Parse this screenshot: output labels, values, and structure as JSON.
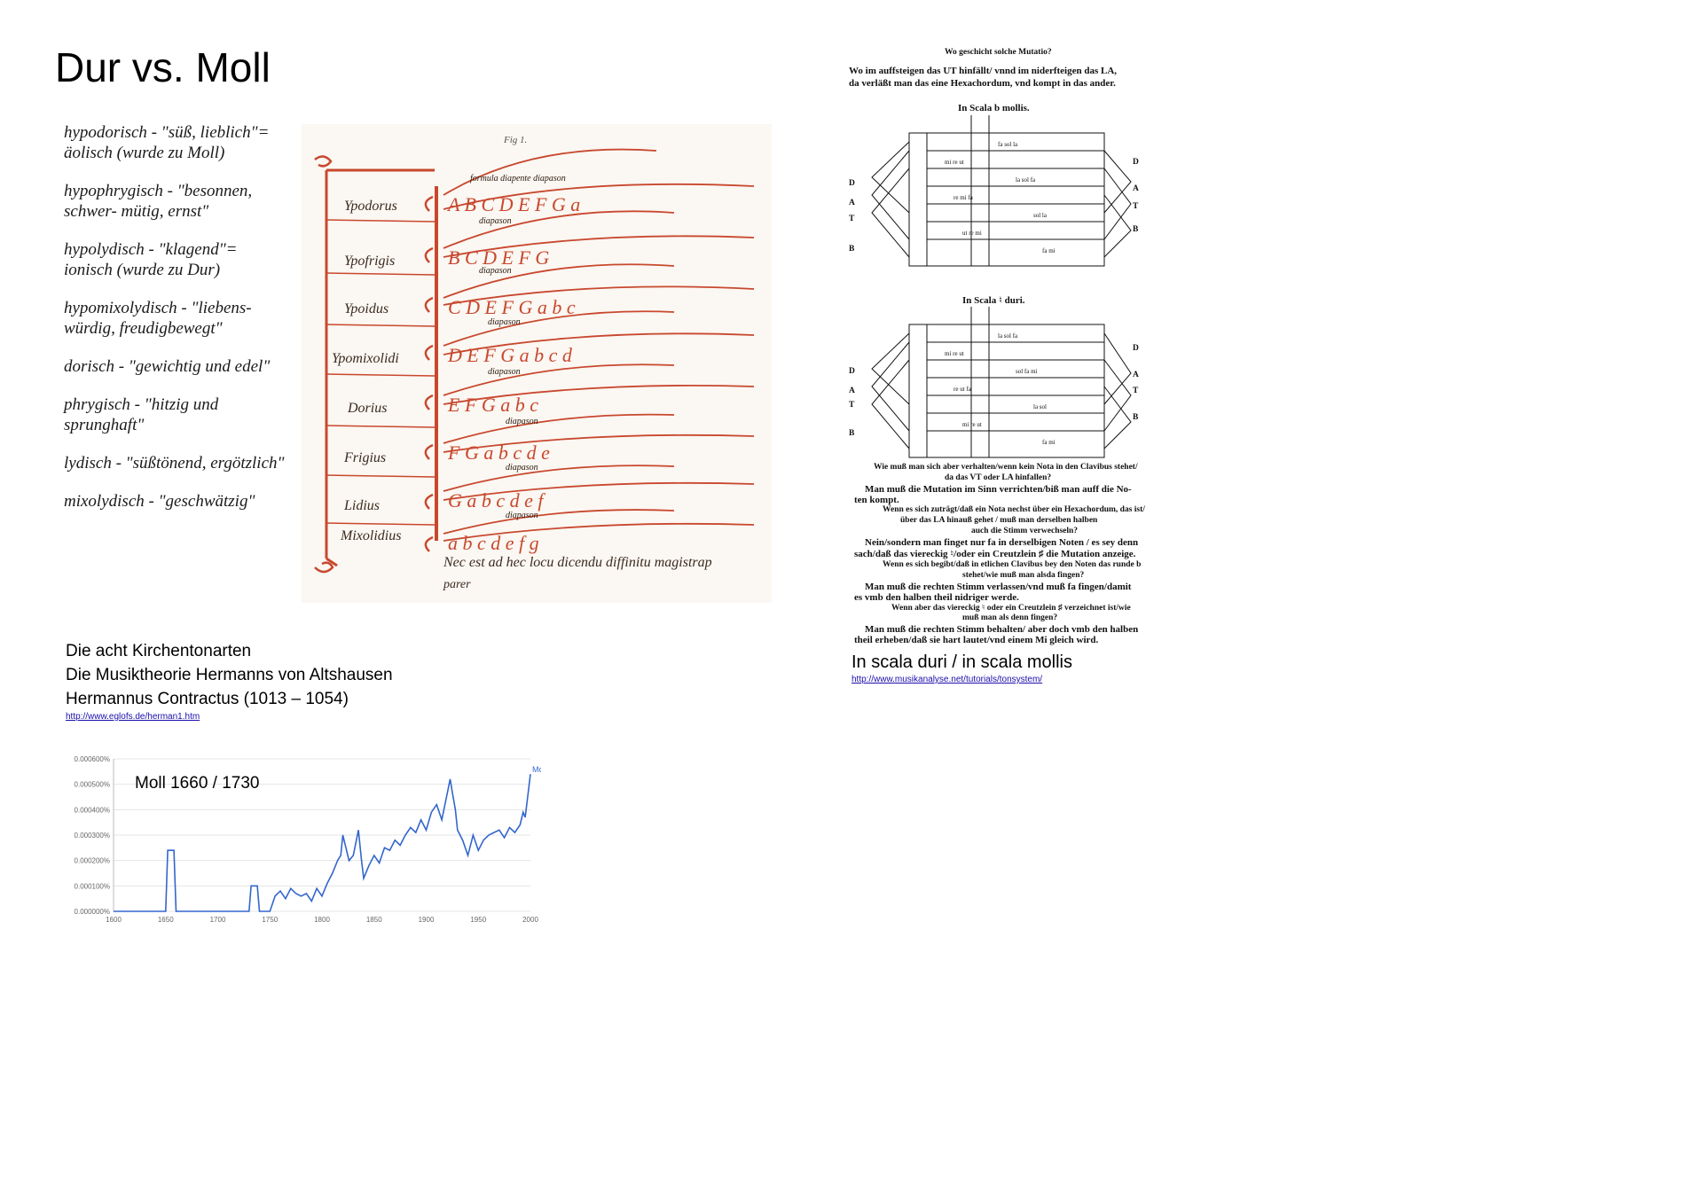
{
  "title": "Dur vs. Moll",
  "modes": [
    {
      "text": "hypodorisch - \"süß, lieblich\"= äolisch (wurde zu Moll)"
    },
    {
      "text": "hypophrygisch - \"besonnen, schwer- mütig, ernst\""
    },
    {
      "text": "hypolydisch - \"klagend\"= ionisch  (wurde zu Dur)"
    },
    {
      "text": "hypomixolydisch - \"liebens- würdig, freudigbewegt\""
    },
    {
      "text": "dorisch - \"gewichtig  und edel\""
    },
    {
      "text": "phrygisch - \"hitzig  und sprunghaft\""
    },
    {
      "text": "lydisch - \"süßtönend, ergötzlich\""
    },
    {
      "text": "mixolydisch - \"geschwätzig\""
    }
  ],
  "manuscript": {
    "fig": "Fig 1.",
    "labels": [
      "Ypodorus",
      "Ypofrigis",
      "Ypoidus",
      "Ypomixolidi",
      "Dorius",
      "Frigius",
      "Lidius",
      "Mixolidius"
    ],
    "footer": "Nec est ad hec locu dicendu diffinitu magistrap",
    "footer2": "parer"
  },
  "caption_left": {
    "line1": "Die acht Kirchentonarten",
    "line2": "Die Musiktheorie Hermanns von Altshausen",
    "line3": "Hermannus Contractus  (1013 – 1054)",
    "link": "http://www.eglofs.de/herman1.htm"
  },
  "treatise": {
    "q1": "Wo geschicht solche Mutatio?",
    "a1a": "Wo im auffsteigen das UT hinfällt/ vnnd im niderfteigen das LA,",
    "a1b": "da verläßt man das eine Hexachordum, vnd kompt in das ander.",
    "h1": "In Scala b mollis.",
    "h2": "In Scala ♮ duri.",
    "side_left": [
      "D",
      "A",
      "T",
      "B"
    ],
    "side_right": [
      "D",
      "A",
      "T",
      "B"
    ],
    "body": [
      "Wie muß man sich aber verhalten/wenn kein Nota in den Clavibus stehet/",
      "da das VT oder LA hinfallen?",
      "Man muß die Mutation im Sinn verrichten/biß man auff die No-",
      "ten kompt.",
      "Wenn es sich zuträgt/daß ein Nota nechst über ein Hexachordum, das ist/",
      "über das LA hinauß gehet / muß man derselben halben",
      "auch die Stimm verwechseln?",
      "Nein/sondern man finget nur fa in derselbigen Noten / es sey denn",
      "sach/daß das viereckig ♮/oder ein Creutzlein ♯ die Mutation anzeige.",
      "Wenn es sich begibt/daß in etlichen Clavibus bey den Noten das runde b",
      "stehet/wie muß man alsda fingen?",
      "Man muß die rechten Stimm verlassen/vnd muß fa fingen/damit",
      "es vmb den halben theil nidriger werde.",
      "Wenn aber das viereckig ♮ oder ein Creutzlein ♯ verzeichnet ist/wie",
      "muß man als denn fingen?",
      "Man muß die rechten Stimm behalten/ aber doch vmb den halben",
      "theil erheben/daß sie hart lautet/vnd einem Mi gleich wird."
    ]
  },
  "caption_right": {
    "line1": "In scala duri / in scala mollis",
    "link": "http://www.musikanalyse.net/tutorials/tonsystem/"
  },
  "ngram": {
    "label": "Moll 1660 / 1730",
    "chart_data": {
      "type": "line",
      "series": [
        {
          "name": "Moll",
          "color": "#3366cc"
        }
      ],
      "x": [
        1600,
        1650,
        1652,
        1658,
        1660,
        1730,
        1732,
        1738,
        1740,
        1750,
        1755,
        1760,
        1765,
        1770,
        1775,
        1780,
        1785,
        1790,
        1795,
        1800,
        1805,
        1810,
        1815,
        1818,
        1820,
        1823,
        1826,
        1830,
        1833,
        1835,
        1838,
        1840,
        1845,
        1850,
        1855,
        1860,
        1865,
        1870,
        1875,
        1880,
        1885,
        1890,
        1895,
        1900,
        1905,
        1910,
        1915,
        1920,
        1923,
        1925,
        1928,
        1930,
        1935,
        1940,
        1945,
        1950,
        1955,
        1960,
        1965,
        1970,
        1975,
        1980,
        1985,
        1990,
        1993,
        1995,
        1998,
        2000
      ],
      "y": [
        0,
        0,
        2.4e-06,
        2.4e-06,
        0,
        0,
        1e-06,
        1e-06,
        0,
        0,
        6e-07,
        8e-07,
        5e-07,
        9e-07,
        7e-07,
        6e-07,
        7e-07,
        4e-07,
        9e-07,
        6e-07,
        1.1e-06,
        1.5e-06,
        2e-06,
        2.2e-06,
        3e-06,
        2.5e-06,
        2e-06,
        2.2e-06,
        2.8e-06,
        3.2e-06,
        2e-06,
        1.3e-06,
        1.8e-06,
        2.2e-06,
        1.9e-06,
        2.5e-06,
        2.4e-06,
        2.8e-06,
        2.6e-06,
        3e-06,
        3.3e-06,
        3.1e-06,
        3.6e-06,
        3.2e-06,
        3.9e-06,
        4.2e-06,
        3.6e-06,
        4.6e-06,
        5.2e-06,
        4.7e-06,
        4e-06,
        3.2e-06,
        2.8e-06,
        2.2e-06,
        3e-06,
        2.4e-06,
        2.8e-06,
        3e-06,
        3.1e-06,
        3.2e-06,
        2.9e-06,
        3.3e-06,
        3.1e-06,
        3.4e-06,
        3.9e-06,
        3.7e-06,
        4.7e-06,
        5.4e-06
      ],
      "xlim": [
        1600,
        2000
      ],
      "ylim": [
        0,
        6e-06
      ],
      "xticks": [
        "1600",
        "1650",
        "1700",
        "1750",
        "1800",
        "1850",
        "1900",
        "1950",
        "2000"
      ],
      "yticks": [
        "0.000000%",
        "0.000100%",
        "0.000200%",
        "0.000300%",
        "0.000400%",
        "0.000500%",
        "0.000600%"
      ],
      "grid": true
    }
  }
}
